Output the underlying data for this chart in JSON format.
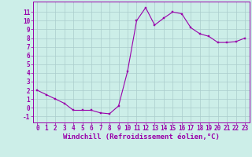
{
  "x": [
    0,
    1,
    2,
    3,
    4,
    5,
    6,
    7,
    8,
    9,
    10,
    11,
    12,
    13,
    14,
    15,
    16,
    17,
    18,
    19,
    20,
    21,
    22,
    23
  ],
  "y": [
    2.0,
    1.5,
    1.0,
    0.5,
    -0.3,
    -0.3,
    -0.3,
    -0.6,
    -0.7,
    0.2,
    4.2,
    10.0,
    11.5,
    9.5,
    10.3,
    11.0,
    10.8,
    9.2,
    8.5,
    8.2,
    7.5,
    7.5,
    7.6,
    8.0
  ],
  "line_color": "#9900aa",
  "marker_color": "#9900aa",
  "bg_color": "#cceee8",
  "grid_color": "#aacccc",
  "axis_color": "#9900aa",
  "tick_color": "#9900aa",
  "xlabel": "Windchill (Refroidissement éolien,°C)",
  "xlim": [
    -0.5,
    23.5
  ],
  "ylim": [
    -1.7,
    12.2
  ],
  "yticks": [
    -1,
    0,
    1,
    2,
    3,
    4,
    5,
    6,
    7,
    8,
    9,
    10,
    11
  ],
  "xticks": [
    0,
    1,
    2,
    3,
    4,
    5,
    6,
    7,
    8,
    9,
    10,
    11,
    12,
    13,
    14,
    15,
    16,
    17,
    18,
    19,
    20,
    21,
    22,
    23
  ],
  "font_size": 5.5,
  "xlabel_fontsize": 6.5
}
